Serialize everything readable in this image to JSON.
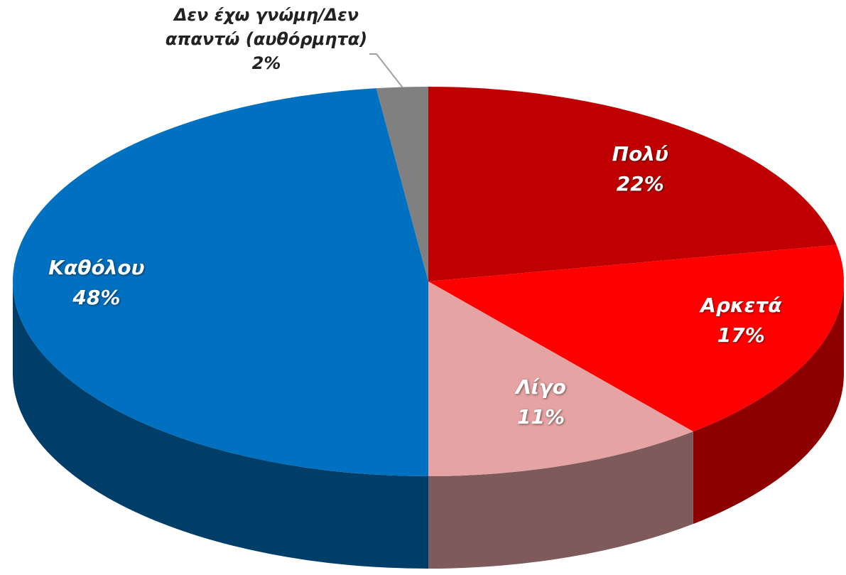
{
  "chart_data": {
    "type": "pie3d",
    "categories": [
      "Πολύ",
      "Αρκετά",
      "Λίγο",
      "Καθόλου",
      "Δεν έχω γνώμη/Δεν απαντώ (αυθόρμητα)"
    ],
    "values": [
      22,
      17,
      11,
      48,
      2
    ],
    "value_labels": [
      "22%",
      "17%",
      "11%",
      "48%",
      "2%"
    ],
    "colors": [
      "#c00000",
      "#ff0000",
      "#e6a3a3",
      "#0070c0",
      "#808080"
    ]
  }
}
